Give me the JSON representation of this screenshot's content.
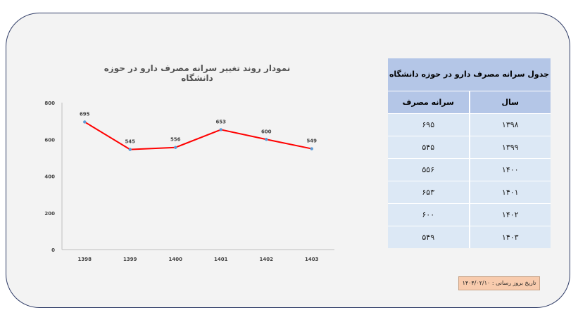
{
  "chart_data": {
    "type": "line",
    "title": "نمودار روند تغییر سرانه مصرف دارو در حوزه دانشگاه",
    "categories": [
      "1398",
      "1399",
      "1400",
      "1401",
      "1402",
      "1403"
    ],
    "values": [
      695,
      545,
      556,
      653,
      600,
      549
    ],
    "y_ticks": [
      "0",
      "200",
      "400",
      "600",
      "800"
    ],
    "ylim": [
      0,
      800
    ],
    "line_color": "#ff0000",
    "marker_color": "#5b9bd5",
    "grid": false
  },
  "table": {
    "title": "جدول سرانه مصرف دارو در حوزه دانشگاه",
    "headers": [
      "سال",
      "سرانه مصرف"
    ],
    "rows": [
      [
        "۱۳۹۸",
        "۶۹۵"
      ],
      [
        "۱۳۹۹",
        "۵۴۵"
      ],
      [
        "۱۴۰۰",
        "۵۵۶"
      ],
      [
        "۱۴۰۱",
        "۶۵۳"
      ],
      [
        "۱۴۰۲",
        "۶۰۰"
      ],
      [
        "۱۴۰۳",
        "۵۴۹"
      ]
    ]
  },
  "update_note": "تاریخ بروز رسانی : ۱۴۰۴/۰۲/۱۰"
}
